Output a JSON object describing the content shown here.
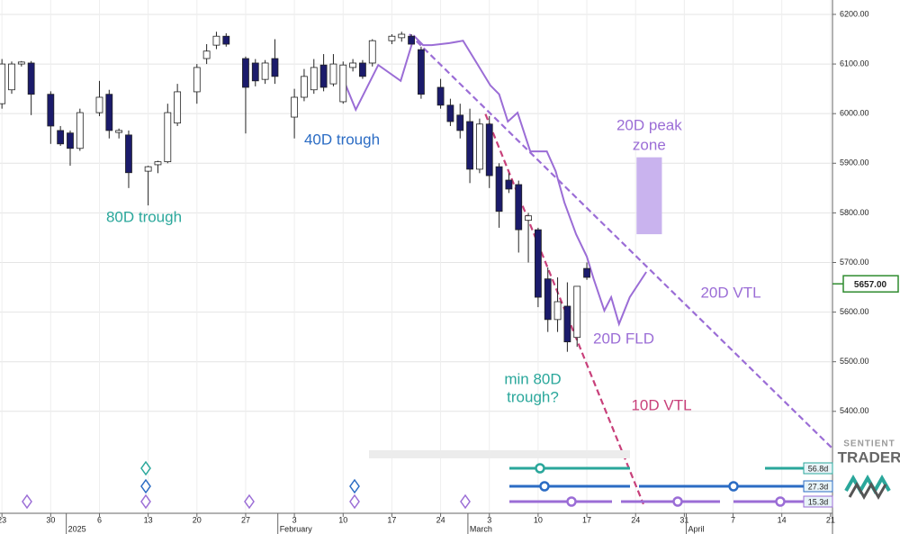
{
  "chart_data": {
    "type": "candlestick",
    "xlim": [
      -0.2,
      85.2
    ],
    "ylim": [
      5200,
      6229
    ],
    "grid": true,
    "up_color": "#ffffff",
    "down_color": "#1b1b6b",
    "xticks": [
      {
        "value": 0,
        "label": "23"
      },
      {
        "value": 5,
        "label": "30"
      },
      {
        "value": 10,
        "label": "6"
      },
      {
        "value": 15,
        "label": "13"
      },
      {
        "value": 20,
        "label": "20"
      },
      {
        "value": 25,
        "label": "27"
      },
      {
        "value": 30,
        "label": "3"
      },
      {
        "value": 35,
        "label": "10"
      },
      {
        "value": 40,
        "label": "17"
      },
      {
        "value": 45,
        "label": "24"
      },
      {
        "value": 50,
        "label": "3"
      },
      {
        "value": 55,
        "label": "10"
      },
      {
        "value": 60,
        "label": "17"
      },
      {
        "value": 65,
        "label": "24"
      },
      {
        "value": 70,
        "label": "31"
      },
      {
        "value": 75,
        "label": "7"
      },
      {
        "value": 80,
        "label": "14"
      },
      {
        "value": 85,
        "label": "21"
      }
    ],
    "xticks_major": [
      {
        "value": 6.6,
        "label": "2025"
      },
      {
        "value": 28.3,
        "label": "February"
      },
      {
        "value": 47.8,
        "label": "March"
      },
      {
        "value": 70.2,
        "label": "April"
      }
    ],
    "yticks": [
      {
        "value": 5400,
        "label": "5400.00"
      },
      {
        "value": 5500,
        "label": "5500.00"
      },
      {
        "value": 5600,
        "label": "5600.00"
      },
      {
        "value": 5700,
        "label": "5700.00"
      },
      {
        "value": 5800,
        "label": "5800.00"
      },
      {
        "value": 5900,
        "label": "5900.00"
      },
      {
        "value": 6000,
        "label": "6000.00"
      },
      {
        "value": 6100,
        "label": "6100.00"
      },
      {
        "value": 6200,
        "label": "6200.00"
      }
    ],
    "last_price": {
      "value": 5657,
      "label": "5657.00",
      "color": "#2e8b2e"
    },
    "candles": {
      "x": [
        0,
        1,
        2,
        3,
        5,
        6,
        7,
        8,
        10,
        11,
        12,
        13,
        15,
        16,
        17,
        18,
        20,
        21,
        22,
        23,
        25,
        26,
        27,
        28,
        30,
        31,
        32,
        33,
        34,
        35,
        36,
        37,
        38,
        40,
        41,
        42,
        43,
        45,
        46,
        47,
        48,
        49,
        50,
        51,
        52,
        53,
        54,
        55,
        56,
        57,
        58,
        59,
        60
      ],
      "open": [
        6020,
        6048,
        6100,
        6102,
        6039,
        5966,
        5961,
        5930,
        6002,
        6039,
        5962,
        5957,
        5884,
        5897,
        5903,
        5981,
        6044,
        6111,
        6138,
        6156,
        6111,
        6102,
        6069,
        6111,
        5993,
        6033,
        6048,
        6098,
        6060,
        6024,
        6093,
        6102,
        6102,
        6147,
        6153,
        6156,
        6129,
        6053,
        6017,
        5997,
        5984,
        5888,
        5979,
        5893,
        5866,
        5857,
        5785,
        5766,
        5667,
        5585,
        5612,
        5549,
        5688
      ],
      "high": [
        6110,
        6105,
        6106,
        6106,
        6045,
        5975,
        5966,
        6010,
        6066,
        6048,
        5970,
        5966,
        5895,
        5905,
        6020,
        6060,
        6100,
        6140,
        6165,
        6162,
        6115,
        6110,
        6108,
        6150,
        6050,
        6090,
        6110,
        6120,
        6120,
        6105,
        6110,
        6108,
        6150,
        6160,
        6165,
        6160,
        6135,
        6070,
        6030,
        6020,
        6010,
        5990,
        5995,
        5900,
        5880,
        5865,
        5800,
        5770,
        5690,
        5670,
        5660,
        5650,
        5700
      ],
      "low": [
        6010,
        6040,
        6095,
        5997,
        5939,
        5935,
        5895,
        5925,
        5995,
        5950,
        5950,
        5850,
        5815,
        5880,
        5900,
        5975,
        6020,
        6100,
        6130,
        6135,
        5960,
        6055,
        6060,
        6060,
        5950,
        6025,
        6040,
        6045,
        6055,
        6020,
        6085,
        6070,
        6095,
        6140,
        6145,
        6140,
        6030,
        6010,
        5975,
        5950,
        5860,
        5880,
        5850,
        5770,
        5840,
        5720,
        5700,
        5610,
        5560,
        5560,
        5520,
        5530,
        5665
      ],
      "close": [
        6100,
        6100,
        6104,
        6039,
        5975,
        5939,
        5930,
        6002,
        6033,
        5966,
        5966,
        5881,
        5893,
        5903,
        6002,
        6044,
        6093,
        6126,
        6156,
        6140,
        6053,
        6066,
        6102,
        6075,
        6033,
        6075,
        6093,
        6053,
        6100,
        6098,
        6102,
        6075,
        6147,
        6156,
        6160,
        6140,
        6039,
        6017,
        5984,
        5966,
        5888,
        5979,
        5875,
        5803,
        5848,
        5766,
        5794,
        5630,
        5585,
        5621,
        5540,
        5652,
        5670
      ]
    },
    "lines": [
      {
        "label": "20D FLD",
        "color": "#9b6dd6",
        "dashed": false,
        "x": [
          34.9,
          36.3,
          38.6,
          40.9,
          42.3,
          43.2,
          44.1,
          45.9,
          47.3,
          48.7,
          50.1,
          51.0,
          51.9,
          52.9,
          54.2,
          55.9,
          56.8,
          57.7,
          58.9,
          60.0,
          60.7,
          61.8,
          62.5,
          63.3,
          64.4,
          66.1
        ],
        "values": [
          6075,
          6008,
          6098,
          6066,
          6156,
          6138,
          6138,
          6142,
          6147,
          6102,
          6057,
          6039,
          5984,
          6002,
          5924,
          5924,
          5884,
          5821,
          5757,
          5712,
          5667,
          5603,
          5630,
          5576,
          5630,
          5681
        ]
      },
      {
        "label": "20D VTL",
        "color": "#9b6dd6",
        "dashed": true,
        "x": [
          41.8,
          85.1
        ],
        "values": [
          6160,
          5327
        ]
      },
      {
        "label": "10D VTL",
        "color": "#c8407a",
        "dashed": true,
        "x": [
          49.6,
          65.8
        ],
        "values": [
          5999,
          5213
        ]
      }
    ],
    "zone": {
      "label": [
        "20D peak",
        "zone"
      ],
      "color": "#c9b3ee",
      "text_color": "#9b6dd6",
      "x": [
        65.1,
        67.7
      ],
      "values": [
        5757,
        5912
      ]
    },
    "annotations": [
      {
        "text": [
          "80D trough"
        ],
        "color": "#2aa79b"
      },
      {
        "text": [
          "40D trough"
        ],
        "color": "#2b6cc4"
      },
      {
        "text": [
          "min 80D",
          "trough?"
        ],
        "color": "#2aa79b"
      }
    ],
    "cycles": [
      {
        "label": "56.8d",
        "color": "#2aa79b"
      },
      {
        "label": "27.3d",
        "color": "#2b6cc4"
      },
      {
        "label": "15.3d",
        "color": "#9b6dd6"
      }
    ],
    "logo": [
      "SENTIENT",
      "TRADER"
    ]
  }
}
